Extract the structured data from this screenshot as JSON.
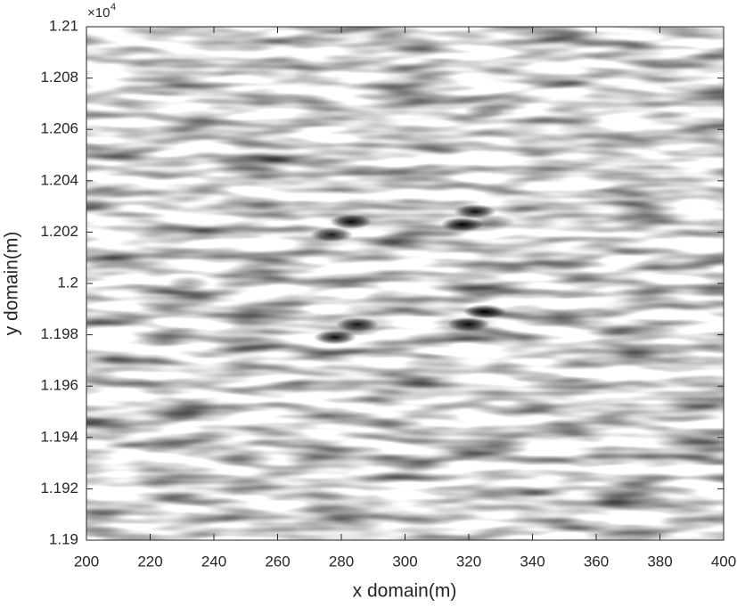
{
  "chart_data": {
    "type": "heatmap",
    "xlabel": "x domain(m)",
    "ylabel": "y domain(m)",
    "y_multiplier": "×10",
    "y_multiplier_exponent": "4",
    "xlim": [
      200,
      400
    ],
    "xticks": [
      200,
      220,
      240,
      260,
      280,
      300,
      320,
      340,
      360,
      380,
      400
    ],
    "ylim": [
      11900,
      12100
    ],
    "yticks": [
      {
        "value": 11900,
        "label": "1.19"
      },
      {
        "value": 11920,
        "label": "1.192"
      },
      {
        "value": 11940,
        "label": "1.194"
      },
      {
        "value": 11960,
        "label": "1.196"
      },
      {
        "value": 11980,
        "label": "1.198"
      },
      {
        "value": 12000,
        "label": "1.2"
      },
      {
        "value": 12020,
        "label": "1.202"
      },
      {
        "value": 12040,
        "label": "1.204"
      },
      {
        "value": 12060,
        "label": "1.206"
      },
      {
        "value": 12080,
        "label": "1.208"
      },
      {
        "value": 12100,
        "label": "1.21"
      }
    ],
    "color": "#000000",
    "blobs": {
      "x": [
        283,
        277,
        322,
        318,
        328,
        285,
        278,
        325,
        320,
        232,
        325,
        230
      ],
      "y": [
        12024,
        12019,
        12028,
        12023,
        12024,
        11984,
        11979,
        11989,
        11984,
        12000,
        12067,
        11949
      ],
      "values": [
        0.95,
        0.9,
        0.95,
        1.0,
        0.4,
        0.9,
        0.95,
        1.0,
        0.95,
        0.35,
        0.35,
        0.3
      ]
    }
  }
}
